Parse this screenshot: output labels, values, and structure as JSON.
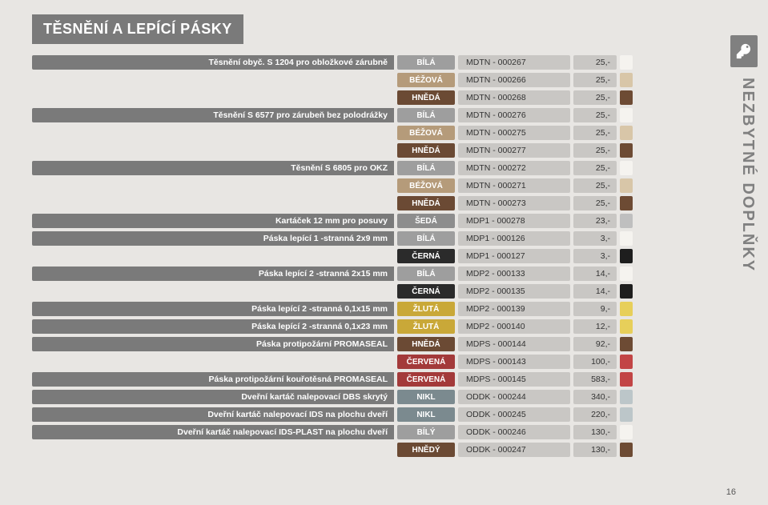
{
  "title": "TĚSNĚNÍ A LEPÍCÍ PÁSKY",
  "sideText": "NEZBYTNÉ DOPLŇKY",
  "pageNum": "16",
  "colorMap": {
    "BÍLÁ": "#9e9e9e",
    "BÍLÝ": "#9e9e9e",
    "BÉŽOVÁ": "#b59b7a",
    "HNĚDÁ": "#6b4a34",
    "HNĚDÝ": "#6b4a34",
    "ŠEDÁ": "#8d8d8d",
    "ČERNÁ": "#2b2b2b",
    "ŽLUTÁ": "#c9a838",
    "ČERVENÁ": "#a33a3a",
    "NIKL": "#7b8a8f"
  },
  "chipMap": {
    "BÍLÁ": "#f5f3ef",
    "BÍLÝ": "#f5f3ef",
    "BÉŽOVÁ": "#d8c6a8",
    "HNĚDÁ": "#6d4b34",
    "HNĚDÝ": "#6d4b34",
    "ŠEDÁ": "#bfbfbf",
    "ČERNÁ": "#1e1e1e",
    "ŽLUTÁ": "#e7cf5a",
    "ČERVENÁ": "#c24545",
    "NIKL": "#bcc6c9"
  },
  "rows": [
    {
      "desc": "Těsnění obyč. S 1204 pro obložkové zárubně",
      "color": "BÍLÁ",
      "code": "MDTN - 000267",
      "price": "25,-"
    },
    {
      "desc": "",
      "color": "BÉŽOVÁ",
      "code": "MDTN - 000266",
      "price": "25,-"
    },
    {
      "desc": "",
      "color": "HNĚDÁ",
      "code": "MDTN - 000268",
      "price": "25,-"
    },
    {
      "desc": "Těsnění S 6577 pro zárubeň bez polodrážky",
      "color": "BÍLÁ",
      "code": "MDTN - 000276",
      "price": "25,-"
    },
    {
      "desc": "",
      "color": "BÉŽOVÁ",
      "code": "MDTN - 000275",
      "price": "25,-"
    },
    {
      "desc": "",
      "color": "HNĚDÁ",
      "code": "MDTN - 000277",
      "price": "25,-"
    },
    {
      "desc": "Těsnění S 6805 pro OKZ",
      "color": "BÍLÁ",
      "code": "MDTN - 000272",
      "price": "25,-"
    },
    {
      "desc": "",
      "color": "BÉŽOVÁ",
      "code": "MDTN - 000271",
      "price": "25,-"
    },
    {
      "desc": "",
      "color": "HNĚDÁ",
      "code": "MDTN - 000273",
      "price": "25,-"
    },
    {
      "desc": "Kartáček 12 mm pro posuvy",
      "color": "ŠEDÁ",
      "code": "MDP1 - 000278",
      "price": "23,-"
    },
    {
      "desc": "Páska lepící 1 -stranná 2x9 mm",
      "color": "BÍLÁ",
      "code": "MDP1 - 000126",
      "price": "3,-"
    },
    {
      "desc": "",
      "color": "ČERNÁ",
      "code": "MDP1 - 000127",
      "price": "3,-"
    },
    {
      "desc": "Páska lepící 2 -stranná 2x15 mm",
      "color": "BÍLÁ",
      "code": "MDP2 - 000133",
      "price": "14,-"
    },
    {
      "desc": "",
      "color": "ČERNÁ",
      "code": "MDP2 - 000135",
      "price": "14,-"
    },
    {
      "desc": "Páska lepící 2 -stranná 0,1x15 mm",
      "color": "ŽLUTÁ",
      "code": "MDP2 - 000139",
      "price": "9,-"
    },
    {
      "desc": "Páska lepící 2 -stranná 0,1x23 mm",
      "color": "ŽLUTÁ",
      "code": "MDP2 - 000140",
      "price": "12,-"
    },
    {
      "desc": "Páska protipožární PROMASEAL",
      "color": "HNĚDÁ",
      "code": "MDPS - 000144",
      "price": "92,-"
    },
    {
      "desc": "",
      "color": "ČERVENÁ",
      "code": "MDPS - 000143",
      "price": "100,-"
    },
    {
      "desc": "Páska protipožární kouřotěsná PROMASEAL",
      "color": "ČERVENÁ",
      "code": "MDPS - 000145",
      "price": "583,-"
    },
    {
      "desc": "Dveřní kartáč nalepovací DBS skrytý",
      "color": "NIKL",
      "code": "ODDK - 000244",
      "price": "340,-"
    },
    {
      "desc": "Dveřní kartáč nalepovací IDS na plochu dveří",
      "color": "NIKL",
      "code": "ODDK - 000245",
      "price": "220,-"
    },
    {
      "desc": "Dveřní kartáč nalepovací IDS-PLAST na plochu dveří",
      "color": "BÍLÝ",
      "code": "ODDK - 000246",
      "price": "130,-"
    },
    {
      "desc": "",
      "color": "HNĚDÝ",
      "code": "ODDK - 000247",
      "price": "130,-"
    }
  ]
}
